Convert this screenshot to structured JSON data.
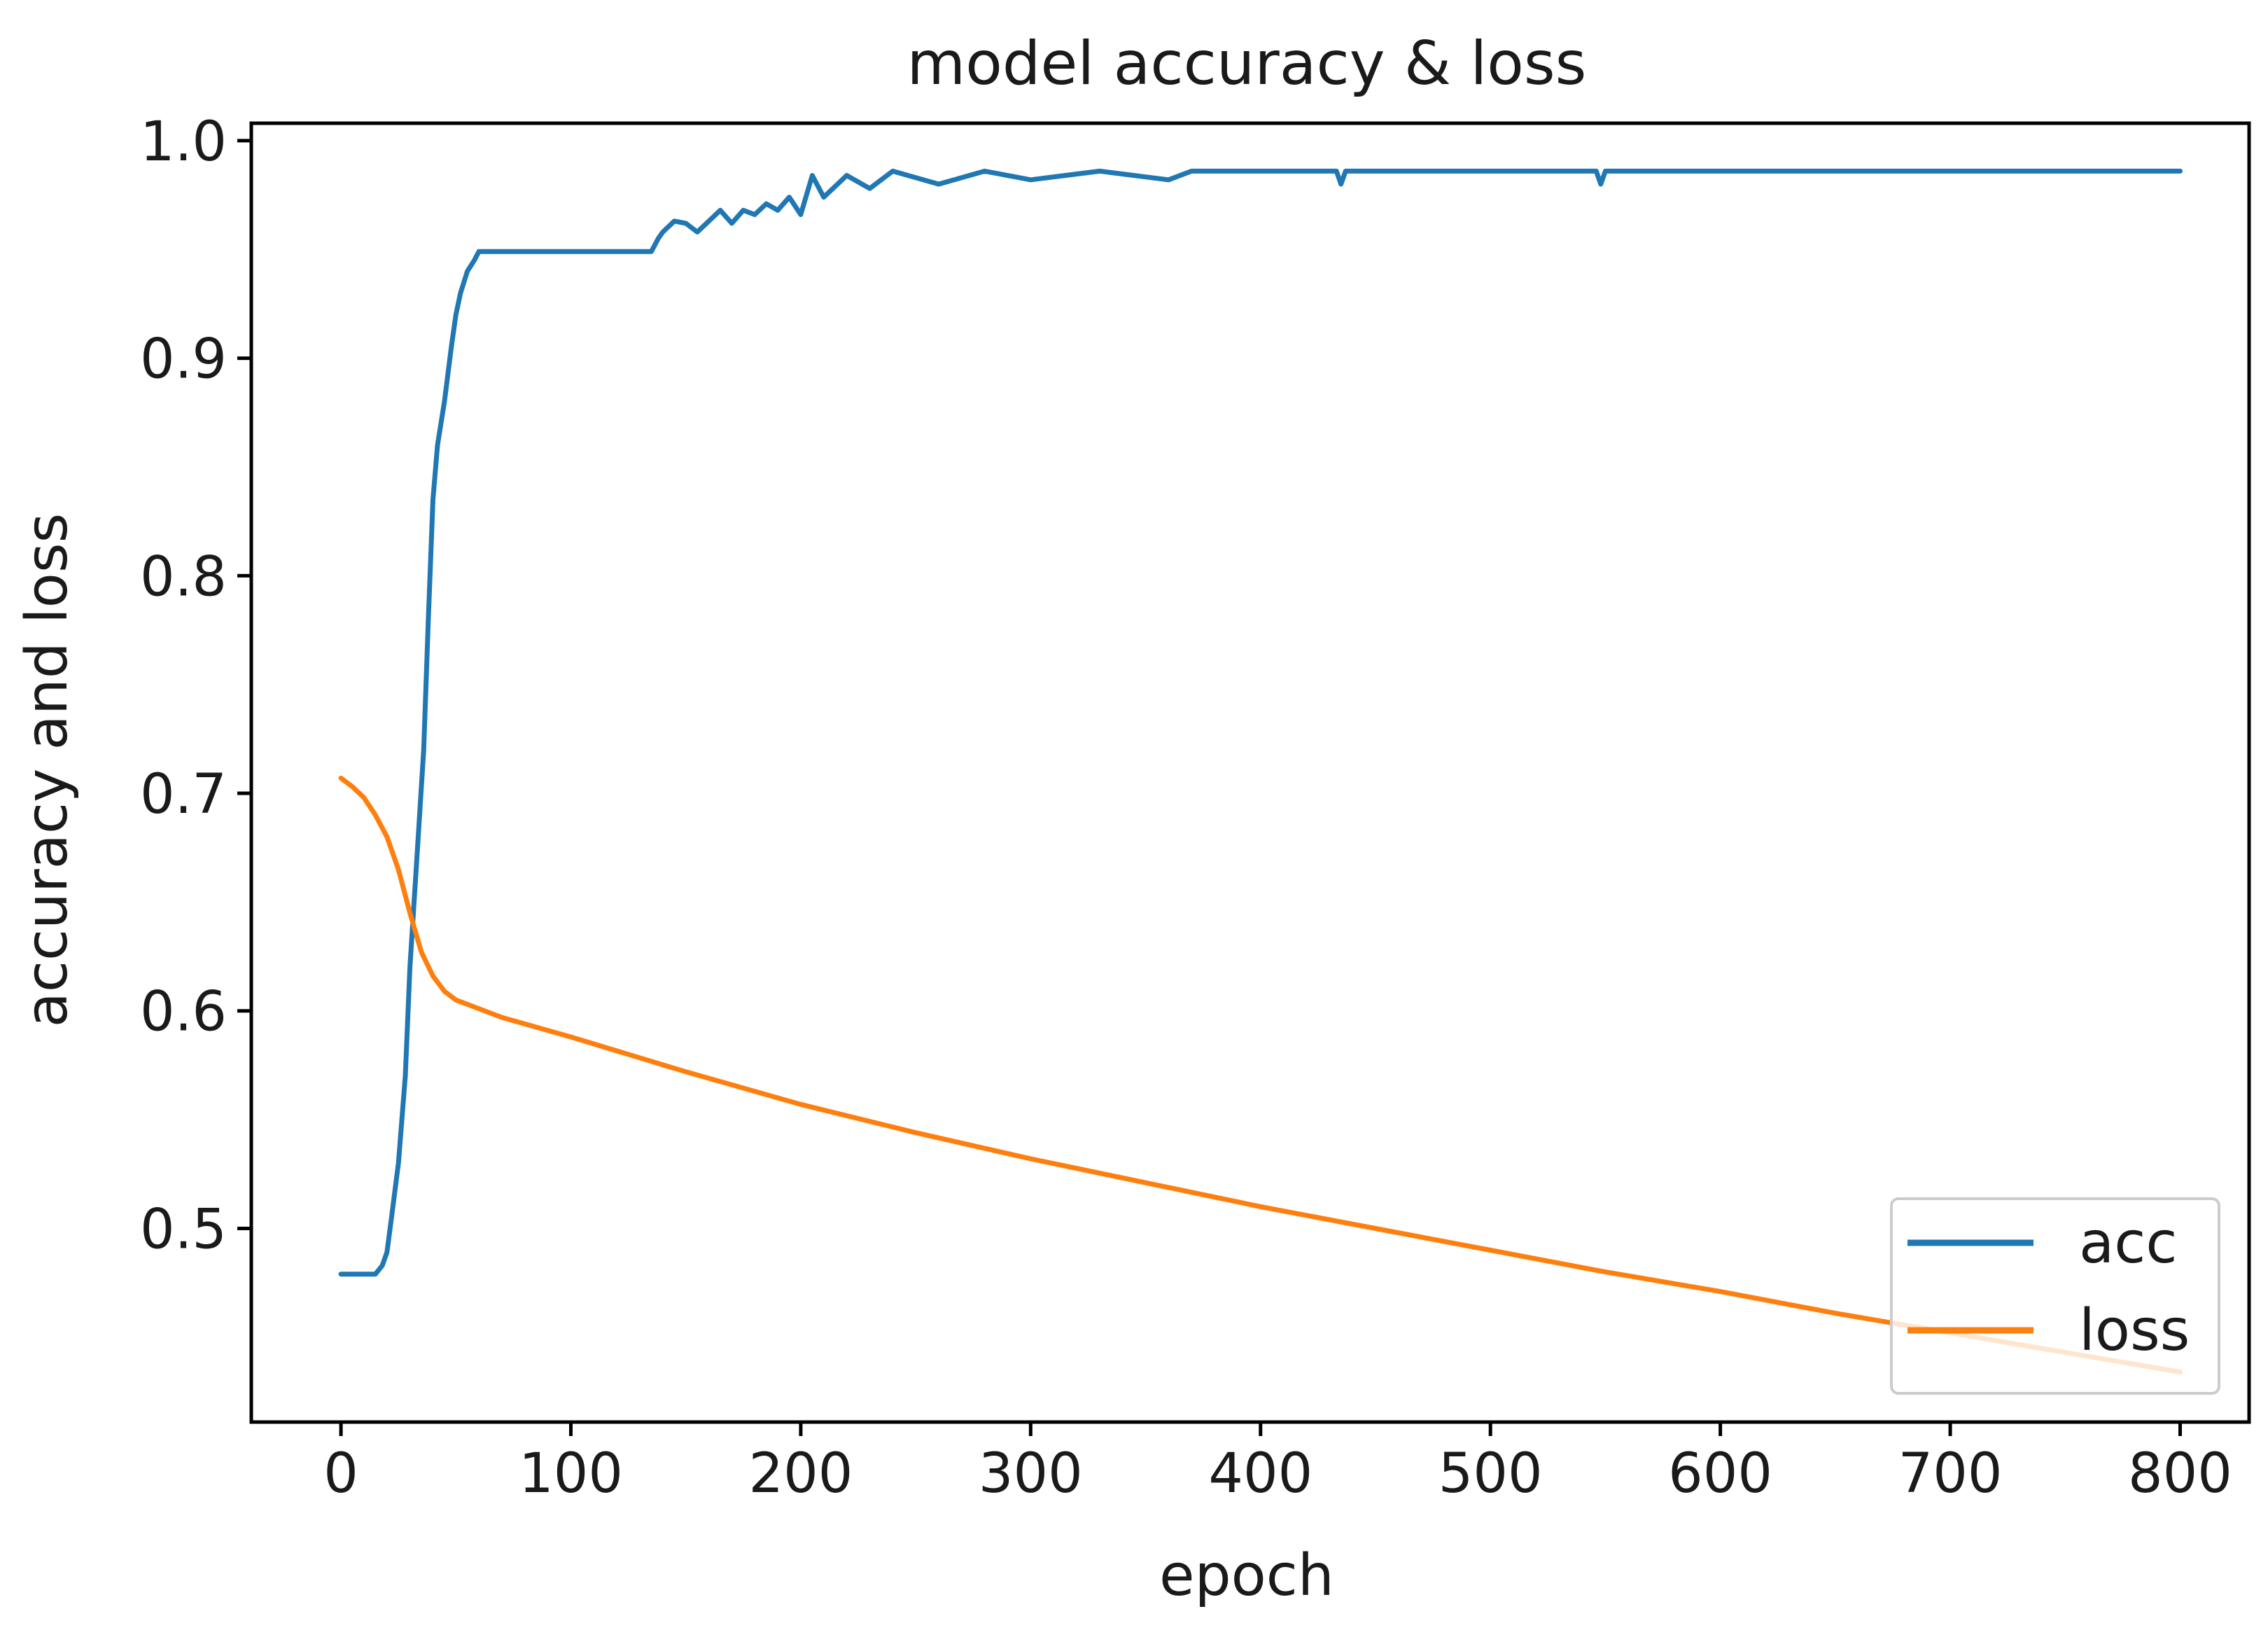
{
  "chart_data": {
    "type": "line",
    "title": "model accuracy & loss",
    "xlabel": "epoch",
    "ylabel": "accuracy and loss",
    "xlim": [
      -39,
      830
    ],
    "ylim": [
      0.411,
      1.008
    ],
    "xticks": [
      0,
      100,
      200,
      300,
      400,
      500,
      600,
      700,
      800
    ],
    "xtick_labels": [
      "0",
      "100",
      "200",
      "300",
      "400",
      "500",
      "600",
      "700",
      "800"
    ],
    "yticks": [
      0.5,
      0.6,
      0.7,
      0.8,
      0.9,
      1.0
    ],
    "ytick_labels": [
      "0.5",
      "0.6",
      "0.7",
      "0.8",
      "0.9",
      "1.0"
    ],
    "grid": false,
    "legend_position": "lower-right",
    "series": [
      {
        "name": "acc",
        "color": "#1f77b4",
        "x": [
          0,
          5,
          10,
          15,
          18,
          20,
          22,
          25,
          28,
          30,
          33,
          36,
          38,
          40,
          42,
          45,
          48,
          50,
          52,
          55,
          58,
          60,
          70,
          80,
          100,
          120,
          135,
          138,
          140,
          145,
          150,
          155,
          160,
          165,
          170,
          175,
          180,
          185,
          190,
          195,
          200,
          205,
          210,
          220,
          230,
          240,
          260,
          280,
          300,
          330,
          360,
          370,
          400,
          433,
          435,
          437,
          500,
          546,
          548,
          550,
          600,
          700,
          800
        ],
        "y": [
          0.479,
          0.479,
          0.479,
          0.479,
          0.483,
          0.489,
          0.505,
          0.53,
          0.57,
          0.62,
          0.67,
          0.72,
          0.78,
          0.835,
          0.86,
          0.88,
          0.905,
          0.92,
          0.93,
          0.94,
          0.945,
          0.949,
          0.949,
          0.949,
          0.949,
          0.949,
          0.949,
          0.955,
          0.958,
          0.963,
          0.962,
          0.958,
          0.963,
          0.968,
          0.962,
          0.968,
          0.966,
          0.971,
          0.968,
          0.974,
          0.966,
          0.984,
          0.974,
          0.984,
          0.978,
          0.986,
          0.98,
          0.986,
          0.982,
          0.986,
          0.982,
          0.986,
          0.986,
          0.986,
          0.98,
          0.986,
          0.986,
          0.986,
          0.98,
          0.986,
          0.986,
          0.986,
          0.986
        ]
      },
      {
        "name": "loss",
        "color": "#ff7f0e",
        "x": [
          0,
          5,
          10,
          15,
          20,
          25,
          30,
          35,
          40,
          45,
          50,
          55,
          60,
          70,
          80,
          100,
          150,
          200,
          250,
          300,
          350,
          400,
          450,
          500,
          550,
          600,
          650,
          700,
          750,
          800
        ],
        "y": [
          0.707,
          0.703,
          0.698,
          0.69,
          0.68,
          0.665,
          0.645,
          0.627,
          0.616,
          0.609,
          0.605,
          0.603,
          0.601,
          0.597,
          0.594,
          0.588,
          0.572,
          0.557,
          0.544,
          0.532,
          0.521,
          0.51,
          0.5,
          0.49,
          0.48,
          0.471,
          0.461,
          0.452,
          0.443,
          0.434
        ]
      }
    ]
  }
}
